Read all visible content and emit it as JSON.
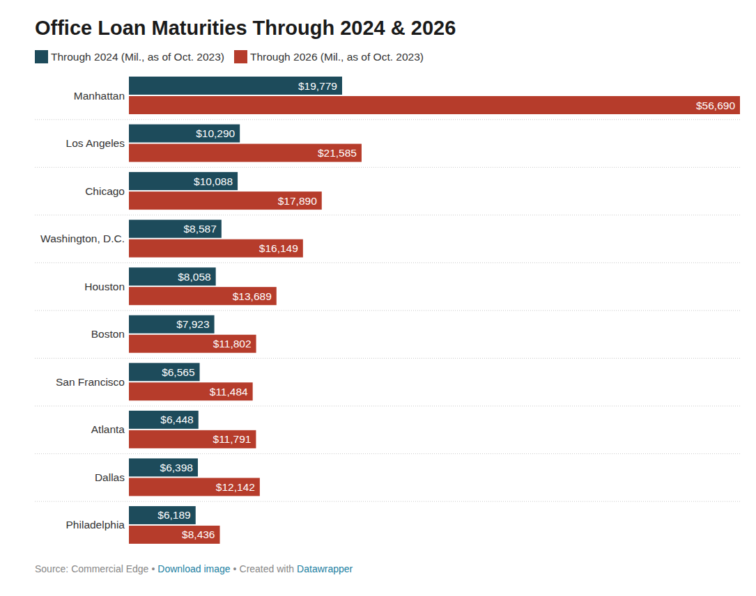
{
  "chart_data": {
    "type": "bar",
    "orientation": "horizontal",
    "title": "Office Loan Maturities Through 2024 & 2026",
    "categories": [
      "Manhattan",
      "Los Angeles",
      "Chicago",
      "Washington, D.C.",
      "Houston",
      "Boston",
      "San Francisco",
      "Atlanta",
      "Dallas",
      "Philadelphia"
    ],
    "series": [
      {
        "name": "Through 2024 (Mil., as of Oct. 2023)",
        "color": "#1d4b5b",
        "values": [
          19779,
          10290,
          10088,
          8587,
          8058,
          7923,
          6565,
          6448,
          6398,
          6189
        ],
        "value_labels": [
          "$19,779",
          "$10,290",
          "$10,088",
          "$8,587",
          "$8,058",
          "$7,923",
          "$6,565",
          "$6,448",
          "$6,398",
          "$6,189"
        ]
      },
      {
        "name": "Through 2026 (Mil., as of Oct. 2023)",
        "color": "#b63c2b",
        "values": [
          56690,
          21585,
          17890,
          16149,
          13689,
          11802,
          11484,
          11791,
          12142,
          8436
        ],
        "value_labels": [
          "$56,690",
          "$21,585",
          "$17,890",
          "$16,149",
          "$13,689",
          "$11,802",
          "$11,484",
          "$11,791",
          "$12,142",
          "$8,436"
        ]
      }
    ],
    "xlim": [
      0,
      56690
    ],
    "data_labels": true,
    "tick_labels": false,
    "legend": "top-left",
    "footer": {
      "source": "Source: Commercial Edge",
      "separator": "•",
      "download": "Download image",
      "credit_prefix": "Created with",
      "credit_link": "Datawrapper"
    }
  }
}
